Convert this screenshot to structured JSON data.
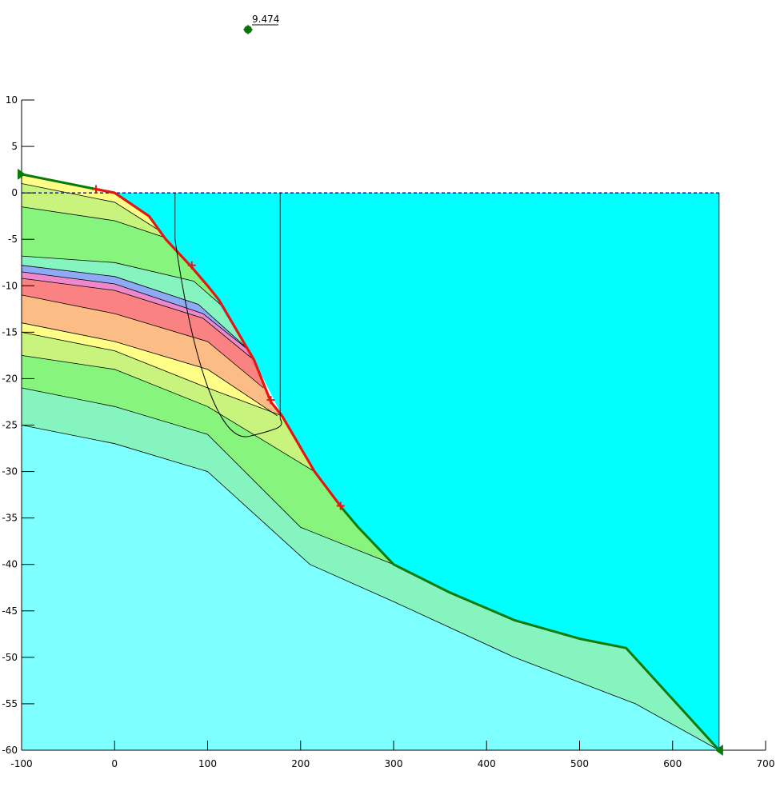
{
  "chart_data": {
    "type": "slope-stability-cross-section",
    "factor_of_safety_label": "9.474",
    "xlim": [
      -100,
      700
    ],
    "ylim": [
      -60,
      10
    ],
    "x_ticks": [
      -100,
      0,
      100,
      200,
      300,
      400,
      500,
      600,
      700
    ],
    "y_ticks": [
      10,
      5,
      0,
      -5,
      -10,
      -15,
      -20,
      -25,
      -30,
      -35,
      -40,
      -45,
      -50,
      -55,
      -60
    ],
    "water_level_y": 0,
    "water_polygon": [
      [
        0,
        0
      ],
      [
        37,
        -2.5
      ],
      [
        55,
        -5
      ],
      [
        100,
        -10
      ],
      [
        150,
        -18
      ],
      [
        180,
        -24
      ],
      [
        215,
        -30
      ],
      [
        245,
        -34
      ],
      [
        300,
        -40
      ],
      [
        360,
        -43
      ],
      [
        430,
        -46
      ],
      [
        500,
        -48
      ],
      [
        550,
        -49
      ],
      [
        650,
        -60
      ],
      [
        650,
        0
      ]
    ],
    "ground_surface": [
      [
        -100,
        2
      ],
      [
        -20,
        0.4
      ],
      [
        0,
        0
      ],
      [
        37,
        -2.5
      ],
      [
        55,
        -5
      ],
      [
        83,
        -8
      ],
      [
        100,
        -10
      ],
      [
        112,
        -11.5
      ],
      [
        150,
        -18
      ],
      [
        168,
        -22.5
      ],
      [
        180,
        -24
      ],
      [
        215,
        -30
      ],
      [
        245,
        -34
      ],
      [
        262,
        -36
      ],
      [
        300,
        -40
      ],
      [
        360,
        -43
      ],
      [
        430,
        -46
      ],
      [
        500,
        -48
      ],
      [
        550,
        -49
      ],
      [
        650,
        -60
      ]
    ],
    "layers": [
      {
        "color": "#ffff88",
        "boundary": [
          [
            -100,
            2
          ],
          [
            -20,
            0.4
          ],
          [
            0,
            0
          ],
          [
            37,
            -2.5
          ],
          [
            55,
            -5
          ],
          [
            -100,
            -5
          ]
        ]
      },
      {
        "color": "#c8f47d",
        "boundary": [
          [
            -100,
            1
          ],
          [
            0,
            -1
          ],
          [
            55,
            -4.5
          ],
          [
            -100,
            -4.5
          ]
        ]
      },
      {
        "color": "#86f47d",
        "boundary": [
          [
            -100,
            -1.5
          ],
          [
            0,
            -3
          ],
          [
            60,
            -5
          ],
          [
            100,
            -8.5
          ],
          [
            -100,
            -8.5
          ]
        ]
      },
      {
        "color": "#86f4bf",
        "boundary": [
          [
            -100,
            -6.8
          ],
          [
            0,
            -7.5
          ],
          [
            85,
            -9.5
          ],
          [
            125,
            -13
          ],
          [
            -100,
            -13
          ]
        ]
      },
      {
        "color": "#8eaaf4",
        "boundary": [
          [
            -100,
            -7.8
          ],
          [
            0,
            -9
          ],
          [
            90,
            -12
          ],
          [
            140,
            -16.5
          ],
          [
            -100,
            -16.5
          ]
        ]
      },
      {
        "color": "#ee88cc",
        "boundary": [
          [
            -100,
            -8.5
          ],
          [
            0,
            -9.8
          ],
          [
            95,
            -13
          ],
          [
            145,
            -17
          ],
          [
            -100,
            -17
          ]
        ]
      },
      {
        "color": "#fa8282",
        "boundary": [
          [
            -100,
            -9.2
          ],
          [
            0,
            -10.5
          ],
          [
            95,
            -13.5
          ],
          [
            150,
            -18
          ],
          [
            -100,
            -18
          ]
        ]
      },
      {
        "color": "#fcbc86",
        "boundary": [
          [
            -100,
            -11
          ],
          [
            0,
            -13
          ],
          [
            100,
            -16
          ],
          [
            160,
            -21
          ],
          [
            -100,
            -21
          ]
        ]
      },
      {
        "color": "#ffff88",
        "boundary": [
          [
            -100,
            -14
          ],
          [
            0,
            -16
          ],
          [
            100,
            -19
          ],
          [
            175,
            -24
          ],
          [
            -100,
            -24
          ]
        ]
      },
      {
        "color": "#c8f47d",
        "boundary": [
          [
            -100,
            -15
          ],
          [
            0,
            -17
          ],
          [
            100,
            -21
          ],
          [
            180,
            -24
          ],
          [
            215,
            -30
          ],
          [
            -100,
            -30
          ]
        ]
      },
      {
        "color": "#86f47d",
        "boundary": [
          [
            -100,
            -17.5
          ],
          [
            0,
            -19
          ],
          [
            100,
            -23
          ],
          [
            215,
            -30
          ],
          [
            245,
            -34
          ],
          [
            300,
            -40
          ],
          [
            -100,
            -40
          ]
        ]
      },
      {
        "color": "#86f4bf",
        "boundary": [
          [
            -100,
            -21
          ],
          [
            0,
            -23
          ],
          [
            100,
            -26
          ],
          [
            200,
            -36
          ],
          [
            300,
            -40
          ],
          [
            360,
            -43
          ],
          [
            430,
            -46
          ],
          [
            500,
            -48
          ],
          [
            550,
            -49
          ],
          [
            650,
            -60
          ],
          [
            -100,
            -60
          ]
        ]
      },
      {
        "color": "#7effff",
        "boundary": [
          [
            -100,
            -25
          ],
          [
            0,
            -27
          ],
          [
            100,
            -30
          ],
          [
            210,
            -40
          ],
          [
            300,
            -44
          ],
          [
            430,
            -50
          ],
          [
            560,
            -55
          ],
          [
            650,
            -60
          ],
          [
            -100,
            -60
          ]
        ]
      }
    ],
    "red_segment": [
      [
        -20,
        0.4
      ],
      [
        0,
        0
      ],
      [
        37,
        -2.5
      ],
      [
        55,
        -5
      ],
      [
        83,
        -8
      ],
      [
        100,
        -10
      ],
      [
        112,
        -11.5
      ],
      [
        150,
        -18
      ],
      [
        168,
        -22.5
      ],
      [
        180,
        -24
      ],
      [
        215,
        -30
      ],
      [
        245,
        -34
      ]
    ],
    "red_markers": [
      [
        -20,
        0.4
      ],
      [
        83,
        -7.8
      ],
      [
        168,
        -22.3
      ],
      [
        243,
        -33.7
      ]
    ],
    "slip_surface": {
      "x_left": 65,
      "x_right": 178,
      "top_y": 0,
      "entry": [
        65,
        -5
      ],
      "exit": [
        178,
        -24.3
      ],
      "bottom": [
        145,
        -26.2
      ]
    },
    "center_marker": [
      145,
      27.1
    ],
    "end_markers": {
      "left": [
        -100,
        2
      ],
      "right": [
        650,
        -60
      ]
    }
  }
}
